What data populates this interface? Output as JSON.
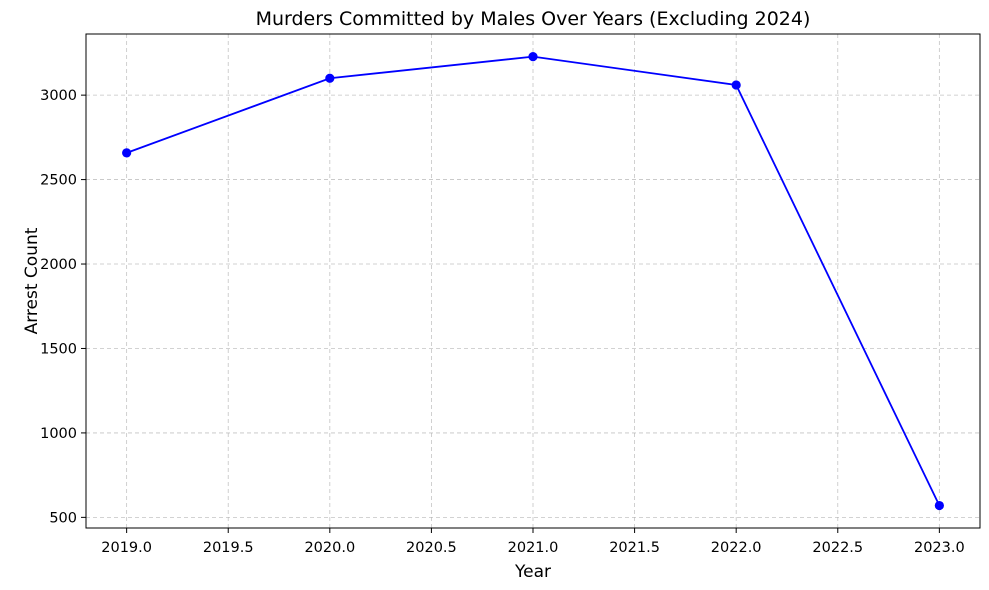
{
  "chart_data": {
    "type": "line",
    "title": "Murders Committed by Males Over Years (Excluding 2024)",
    "xlabel": "Year",
    "ylabel": "Arrest Count",
    "x": [
      2019,
      2020,
      2021,
      2022,
      2023
    ],
    "series": [
      {
        "values": [
          2658,
          3100,
          3228,
          3060,
          570
        ],
        "color": "#0000ff",
        "marker": "circle"
      }
    ],
    "xlim": [
      2018.8,
      2023.2
    ],
    "ylim": [
      437,
      3362
    ],
    "xticks": [
      2019.0,
      2019.5,
      2020.0,
      2020.5,
      2021.0,
      2021.5,
      2022.0,
      2022.5,
      2023.0
    ],
    "xtick_labels": [
      "2019.0",
      "2019.5",
      "2020.0",
      "2020.5",
      "2021.0",
      "2021.5",
      "2022.0",
      "2022.5",
      "2023.0"
    ],
    "yticks": [
      500,
      1000,
      1500,
      2000,
      2500,
      3000
    ],
    "ytick_labels": [
      "500",
      "1000",
      "1500",
      "2000",
      "2500",
      "3000"
    ],
    "grid": true,
    "grid_style": "dashed",
    "legend": false
  }
}
